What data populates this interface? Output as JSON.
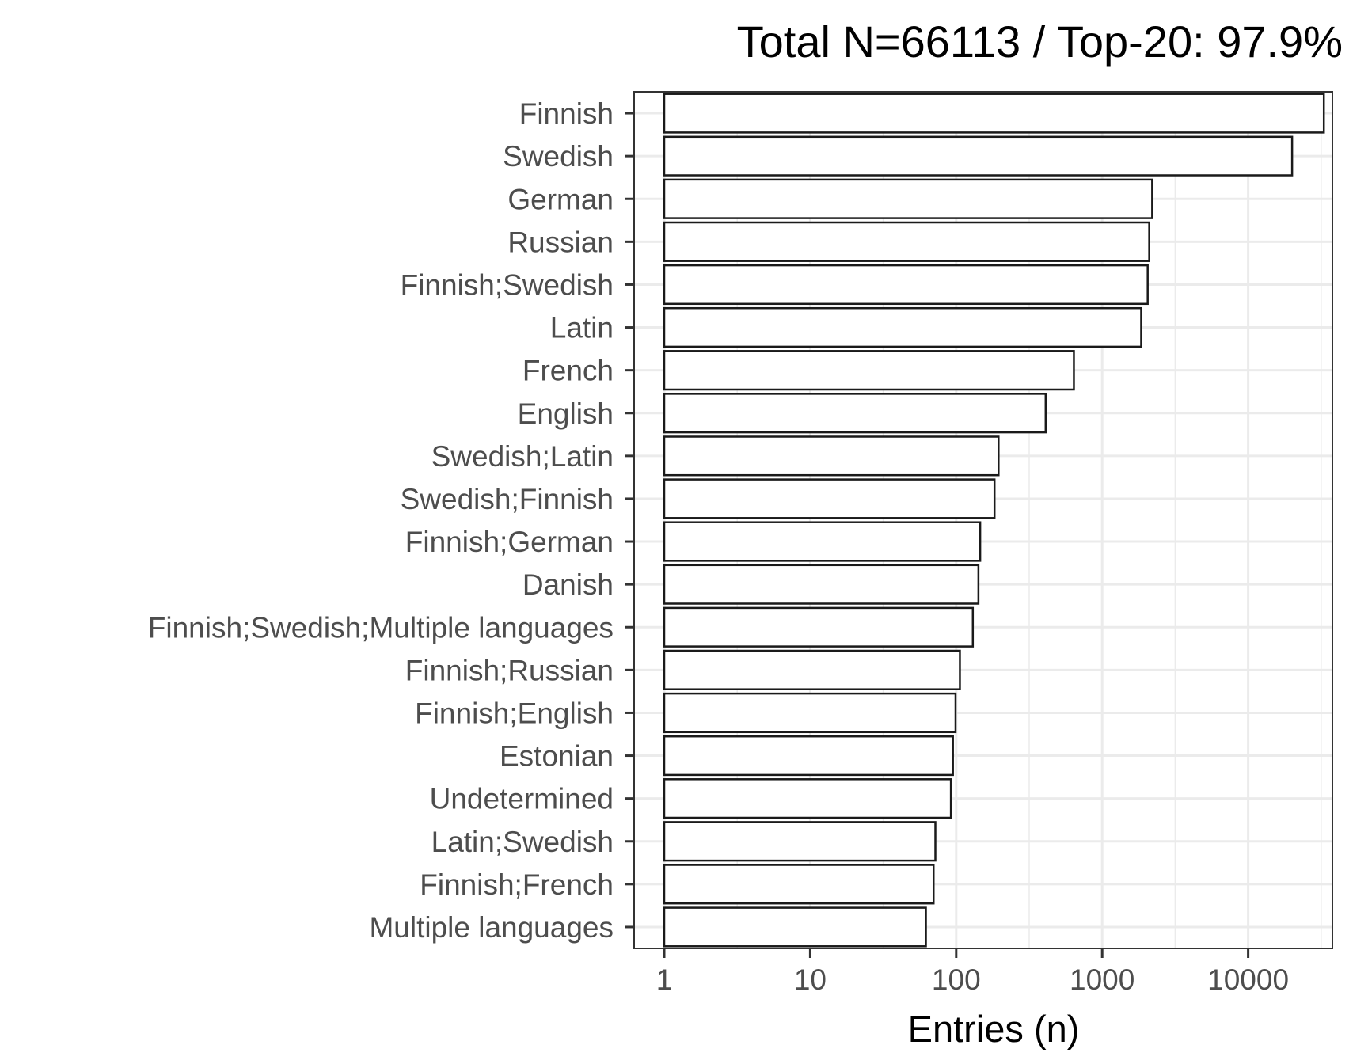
{
  "chart_data": {
    "type": "bar",
    "orientation": "horizontal",
    "title": "Total N=66113 / Top-20: 97.9%",
    "xlabel": "Entries (n)",
    "ylabel": "",
    "x_scale": "log10",
    "xlim": [
      0.8,
      50000
    ],
    "x_ticks": [
      1,
      10,
      100,
      1000,
      10000
    ],
    "x_tick_labels": [
      "1",
      "10",
      "100",
      "1000",
      "10000"
    ],
    "grid": true,
    "categories": [
      "Finnish",
      "Swedish",
      "German",
      "Russian",
      "Finnish;Swedish",
      "Latin",
      "French",
      "English",
      "Swedish;Latin",
      "Swedish;Finnish",
      "Finnish;German",
      "Danish",
      "Finnish;Swedish;Multiple languages",
      "Finnish;Russian",
      "Finnish;English",
      "Estonian",
      "Undetermined",
      "Latin;Swedish",
      "Finnish;French",
      "Multiple languages"
    ],
    "values": [
      33000,
      20000,
      2200,
      2100,
      2050,
      1850,
      640,
      410,
      195,
      183,
      146,
      142,
      130,
      106,
      99,
      95,
      92,
      72,
      70,
      62
    ]
  }
}
